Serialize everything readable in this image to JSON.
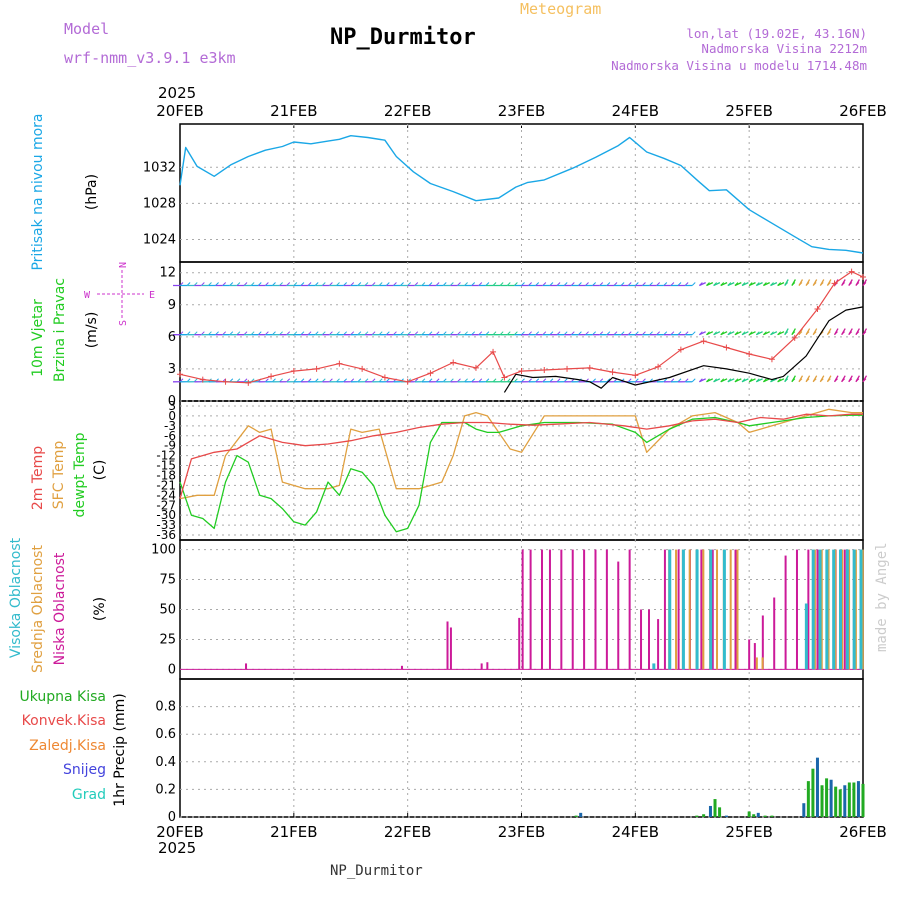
{
  "header": {
    "model_label": "Model",
    "model_name": "wrf-nmm_v3.9.1 e3km",
    "product": "Meteogram",
    "station": "NP_Durmitor",
    "lonlat": "lon,lat (19.02E, 43.16N)",
    "elevation": "Nadmorska Visina 2212m",
    "model_elevation": "Nadmorska Visina u modelu 1714.48m",
    "footer_station": "NP_Durmitor",
    "credit": "made by Angel",
    "year": "2025"
  },
  "colors": {
    "pressure": "#1aa7e6",
    "wind_speed": "#e84a4a",
    "wind_gust": "#000000",
    "temp2m": "#e84a4a",
    "sfc": "#e0a040",
    "dew": "#22cc22",
    "high_cloud": "#33bbcc",
    "mid_cloud": "#e0a040",
    "low_cloud": "#cc1a99",
    "total_precip": "#22aa22",
    "conv_precip": "#e84a4a",
    "frozen_precip": "#ee8833",
    "snow": "#4444dd",
    "hail": "#22ccbb",
    "label_green": "#22cc22",
    "label_purple": "#cc33cc"
  },
  "chart_data": [
    {
      "type": "line",
      "id": "pressure",
      "title": "Pritisak na nivou mora",
      "ylabel": "(hPa)",
      "xlabel": "",
      "x_unit": "days since 20FEB 00Z",
      "x_ticks": [
        "20FEB",
        "21FEB",
        "22FEB",
        "23FEB",
        "24FEB",
        "25FEB",
        "26FEB"
      ],
      "xlim": [
        0,
        6
      ],
      "ylim": [
        1021.5,
        1036.8
      ],
      "y_ticks": [
        1024,
        1028,
        1032
      ],
      "series": [
        {
          "name": "MSLP",
          "x": [
            0,
            0.05,
            0.15,
            0.3,
            0.45,
            0.6,
            0.75,
            0.9,
            1.0,
            1.15,
            1.3,
            1.4,
            1.5,
            1.65,
            1.8,
            1.9,
            2.05,
            2.2,
            2.4,
            2.6,
            2.8,
            2.95,
            3.05,
            3.2,
            3.45,
            3.65,
            3.85,
            3.95,
            4.1,
            4.25,
            4.4,
            4.55,
            4.65,
            4.8,
            5.0,
            5.2,
            5.4,
            5.55,
            5.7,
            5.85,
            6.0
          ],
          "values": [
            1030.0,
            1034.2,
            1032.1,
            1031.0,
            1032.3,
            1033.2,
            1033.9,
            1034.3,
            1034.8,
            1034.6,
            1034.9,
            1035.1,
            1035.5,
            1035.3,
            1035.0,
            1033.2,
            1031.5,
            1030.2,
            1029.3,
            1028.3,
            1028.6,
            1029.8,
            1030.3,
            1030.6,
            1031.9,
            1033.1,
            1034.4,
            1035.3,
            1033.7,
            1033.0,
            1032.2,
            1030.5,
            1029.4,
            1029.5,
            1027.3,
            1025.8,
            1024.3,
            1023.2,
            1022.9,
            1022.8,
            1022.5
          ]
        }
      ]
    },
    {
      "type": "line",
      "id": "wind",
      "title": "10m Vjetar",
      "subtitle": "Brzina i Pravac",
      "ylabel": "(m/s)",
      "xlabel": "",
      "x_unit": "days since 20FEB 00Z",
      "compass": {
        "n": "N",
        "s": "S",
        "e": "E",
        "w": "W"
      },
      "xlim": [
        0,
        6
      ],
      "ylim": [
        0,
        13
      ],
      "y_ticks": [
        0,
        3,
        6,
        9,
        12
      ],
      "barb_rows": [
        1.8,
        6.2,
        10.8
      ],
      "series": [
        {
          "name": "wind speed",
          "x": [
            0,
            0.2,
            0.4,
            0.6,
            0.8,
            1.0,
            1.2,
            1.4,
            1.6,
            1.8,
            2.0,
            2.2,
            2.4,
            2.6,
            2.75,
            2.85,
            3.0,
            3.2,
            3.4,
            3.6,
            3.8,
            4.0,
            4.2,
            4.4,
            4.6,
            4.8,
            5.0,
            5.2,
            5.4,
            5.6,
            5.75,
            5.9,
            6.0
          ],
          "values": [
            2.5,
            2.0,
            1.8,
            1.7,
            2.3,
            2.8,
            3.0,
            3.5,
            3.0,
            2.2,
            1.8,
            2.6,
            3.6,
            3.1,
            4.6,
            2.2,
            2.8,
            2.9,
            3.0,
            3.1,
            2.7,
            2.4,
            3.2,
            4.8,
            5.6,
            5.0,
            4.4,
            3.9,
            5.9,
            8.6,
            11.0,
            12.1,
            11.6
          ]
        },
        {
          "name": "wind gust",
          "x": [
            2.85,
            2.95,
            3.1,
            3.3,
            3.5,
            3.6,
            3.7,
            3.8,
            4.0,
            4.3,
            4.6,
            4.8,
            5.0,
            5.2,
            5.3,
            5.5,
            5.7,
            5.85,
            6.0
          ],
          "values": [
            0.8,
            2.5,
            2.2,
            2.3,
            2.0,
            1.8,
            1.2,
            2.2,
            1.5,
            2.2,
            3.3,
            3.0,
            2.6,
            2.0,
            2.3,
            4.2,
            7.5,
            8.5,
            8.8
          ]
        }
      ]
    },
    {
      "type": "line",
      "id": "temperature",
      "labels": [
        "2m Temp",
        "SFC Temp",
        "dewpt Temp"
      ],
      "ylabel": "(C)",
      "xlabel": "",
      "x_unit": "days since 20FEB 00Z",
      "xlim": [
        0,
        6
      ],
      "ylim": [
        -37.5,
        4.5
      ],
      "y_ticks": [
        3,
        0,
        -3,
        -6,
        -9,
        -12,
        -15,
        -18,
        -21,
        -24,
        -27,
        -30,
        -33,
        -36
      ],
      "series": [
        {
          "name": "2m Temp",
          "x": [
            0,
            0.1,
            0.3,
            0.5,
            0.7,
            0.9,
            1.1,
            1.3,
            1.5,
            1.7,
            1.9,
            2.1,
            2.3,
            2.5,
            2.7,
            2.9,
            3.1,
            3.3,
            3.6,
            3.9,
            4.1,
            4.3,
            4.5,
            4.7,
            4.9,
            5.1,
            5.3,
            5.5,
            5.7,
            5.9,
            6.0
          ],
          "values": [
            -25,
            -13,
            -11,
            -10,
            -6,
            -8,
            -9,
            -8.5,
            -7.5,
            -6,
            -5,
            -3.5,
            -2.5,
            -2,
            -2,
            -2.5,
            -2.8,
            -2.5,
            -2,
            -3,
            -4,
            -3,
            -1.5,
            -1,
            -2,
            -0.5,
            -1,
            0.5,
            0,
            0.5,
            0.5
          ]
        },
        {
          "name": "SFC Temp",
          "x": [
            0,
            0.15,
            0.3,
            0.4,
            0.6,
            0.7,
            0.8,
            0.9,
            1.1,
            1.3,
            1.4,
            1.5,
            1.6,
            1.75,
            1.9,
            2.1,
            2.3,
            2.4,
            2.5,
            2.6,
            2.7,
            2.9,
            3.0,
            3.2,
            3.5,
            3.8,
            4.0,
            4.1,
            4.3,
            4.5,
            4.7,
            4.9,
            5.0,
            5.3,
            5.5,
            5.7,
            5.9,
            6.0
          ],
          "values": [
            -25,
            -24,
            -24,
            -12,
            -3,
            -5,
            -4,
            -20,
            -22,
            -22,
            -21,
            -4,
            -5,
            -4,
            -22,
            -22,
            -20,
            -12,
            0,
            1,
            0,
            -10,
            -11,
            0,
            0,
            0,
            0,
            -11,
            -4,
            0,
            1,
            -2,
            -5,
            -2,
            0,
            2,
            1,
            1
          ]
        },
        {
          "name": "dewpt Temp",
          "x": [
            0,
            0.1,
            0.2,
            0.3,
            0.4,
            0.5,
            0.6,
            0.7,
            0.8,
            0.9,
            1.0,
            1.1,
            1.2,
            1.3,
            1.4,
            1.5,
            1.6,
            1.7,
            1.8,
            1.9,
            2.0,
            2.1,
            2.2,
            2.3,
            2.4,
            2.5,
            2.6,
            2.7,
            2.8,
            3.0,
            3.2,
            3.5,
            3.8,
            4.0,
            4.1,
            4.3,
            4.5,
            4.7,
            4.9,
            5.0,
            5.2,
            5.5,
            5.7,
            5.9,
            6.0
          ],
          "values": [
            -20,
            -30,
            -31,
            -34,
            -20,
            -12,
            -14,
            -24,
            -25,
            -28,
            -32,
            -33,
            -29,
            -20,
            -24,
            -16,
            -17,
            -21,
            -30,
            -35,
            -34,
            -27,
            -8,
            -2,
            -2,
            -2,
            -4,
            -5,
            -5,
            -3,
            -2,
            -2,
            -2.5,
            -5,
            -8,
            -4,
            -1,
            -0.5,
            -2,
            -3,
            -2,
            -0.5,
            0,
            0.2,
            0.2
          ]
        }
      ]
    },
    {
      "type": "bar",
      "id": "clouds",
      "labels": [
        "Visoka Oblacnost",
        "Srednja Oblacnost",
        "Niska Oblacnost"
      ],
      "ylabel": "(%)",
      "xlabel": "",
      "x_unit": "days since 20FEB 00Z",
      "xlim": [
        0,
        6
      ],
      "ylim": [
        -8,
        108
      ],
      "y_ticks": [
        0,
        25,
        50,
        75,
        100
      ],
      "series": [
        {
          "name": "Niska",
          "x": [
            0.58,
            1.95,
            2.35,
            2.38,
            2.65,
            2.7,
            2.98,
            3.01,
            3.08,
            3.18,
            3.25,
            3.35,
            3.45,
            3.55,
            3.65,
            3.75,
            3.85,
            3.95,
            4.05,
            4.12,
            4.2,
            4.26,
            4.3,
            4.38,
            4.48,
            4.58,
            4.68,
            4.78,
            4.88,
            5.0,
            5.05,
            5.12,
            5.22,
            5.32,
            5.42,
            5.52,
            5.6,
            5.68,
            5.76,
            5.84,
            5.92,
            5.98
          ],
          "values": [
            5,
            3,
            40,
            35,
            5,
            6,
            43,
            100,
            100,
            100,
            100,
            100,
            100,
            100,
            100,
            100,
            90,
            100,
            50,
            50,
            42,
            100,
            100,
            100,
            100,
            100,
            100,
            100,
            100,
            25,
            22,
            45,
            60,
            95,
            100,
            100,
            100,
            100,
            100,
            100,
            100,
            100
          ]
        },
        {
          "name": "Srednja",
          "x": [
            4.28,
            4.34,
            4.4,
            4.46,
            4.52,
            4.58,
            4.64,
            4.7,
            4.76,
            4.82,
            4.88,
            5.05,
            5.1,
            5.56,
            5.62,
            5.68,
            5.74,
            5.8,
            5.86,
            5.92,
            5.98
          ],
          "values": [
            100,
            100,
            100,
            100,
            100,
            100,
            100,
            100,
            100,
            100,
            100,
            10,
            10,
            100,
            100,
            100,
            100,
            100,
            100,
            100,
            100
          ]
        },
        {
          "name": "Visoka",
          "x": [
            4.18,
            4.32,
            4.44,
            4.56,
            4.68,
            4.8,
            5.52,
            5.58,
            5.64,
            5.7,
            5.76,
            5.82,
            5.88,
            5.94,
            6.0
          ],
          "values": [
            5,
            100,
            100,
            100,
            100,
            100,
            55,
            100,
            100,
            100,
            100,
            100,
            100,
            100,
            100
          ]
        }
      ]
    },
    {
      "type": "bar",
      "id": "precip",
      "labels": [
        "Ukupna Kisa",
        "Konvek.Kisa",
        "Zaledj.Kisa",
        "Snijeg",
        "Grad"
      ],
      "ylabel": "1hr Precip (mm)",
      "xlabel": "",
      "x_unit": "days since 20FEB 00Z",
      "x_ticks": [
        "20FEB",
        "21FEB",
        "22FEB",
        "23FEB",
        "24FEB",
        "25FEB",
        "26FEB"
      ],
      "xlim": [
        0,
        6
      ],
      "ylim": [
        0,
        1.0
      ],
      "y_ticks": [
        0,
        0.2,
        0.4,
        0.6,
        0.8
      ],
      "series": [
        {
          "name": "1hr precip",
          "x": [
            3.48,
            3.52,
            4.54,
            4.6,
            4.66,
            4.7,
            4.74,
            4.8,
            5.0,
            5.04,
            5.08,
            5.14,
            5.2,
            5.48,
            5.52,
            5.56,
            5.6,
            5.64,
            5.68,
            5.72,
            5.76,
            5.8,
            5.84,
            5.88,
            5.92,
            5.96,
            6.0
          ],
          "values": [
            0.01,
            0.03,
            0.01,
            0.02,
            0.08,
            0.13,
            0.07,
            0.01,
            0.04,
            0.02,
            0.03,
            0.01,
            0.01,
            0.1,
            0.26,
            0.35,
            0.43,
            0.23,
            0.28,
            0.27,
            0.22,
            0.2,
            0.23,
            0.25,
            0.25,
            0.26,
            0.24
          ]
        }
      ]
    }
  ]
}
